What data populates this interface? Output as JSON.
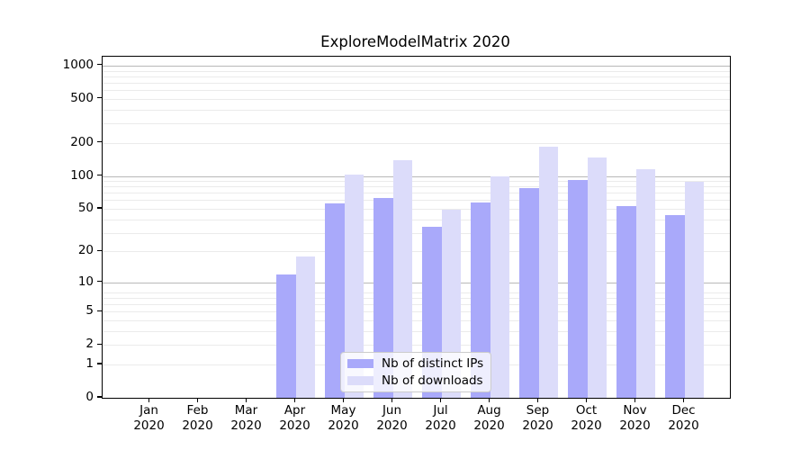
{
  "chart_data": {
    "type": "bar",
    "title": "ExploreModelMatrix 2020",
    "categories": [
      "Jan 2020",
      "Feb 2020",
      "Mar 2020",
      "Apr 2020",
      "May 2020",
      "Jun 2020",
      "Jul 2020",
      "Aug 2020",
      "Sep 2020",
      "Oct 2020",
      "Nov 2020",
      "Dec 2020"
    ],
    "series": [
      {
        "name": "Nb of distinct IPs",
        "color": "#a9a9fa",
        "values": [
          0,
          0,
          0,
          12,
          56,
          63,
          34,
          57,
          78,
          92,
          53,
          44
        ]
      },
      {
        "name": "Nb of downloads",
        "color": "#dcdcfa",
        "values": [
          0,
          0,
          0,
          18,
          103,
          138,
          49,
          100,
          185,
          148,
          116,
          88
        ]
      }
    ],
    "xlabel": "",
    "ylabel": "",
    "yscale": "log1p",
    "ylim": [
      0,
      1400
    ],
    "yticks": [
      1000,
      500,
      200,
      100,
      50,
      20,
      10,
      5,
      2,
      1,
      0
    ],
    "grid": {
      "on": true,
      "major": [
        10,
        100,
        1000
      ],
      "minor": [
        1,
        2,
        3,
        4,
        5,
        6,
        7,
        8,
        20,
        30,
        40,
        50,
        60,
        70,
        80,
        90,
        200,
        300,
        400,
        500,
        600,
        700,
        800,
        900
      ]
    },
    "legend_position": "lower-center-inside",
    "colors": {
      "major_grid": "#b8b8b8",
      "minor_grid": "#ebebeb",
      "spine": "#000000",
      "text": "#000000",
      "background": "#ffffff"
    }
  }
}
